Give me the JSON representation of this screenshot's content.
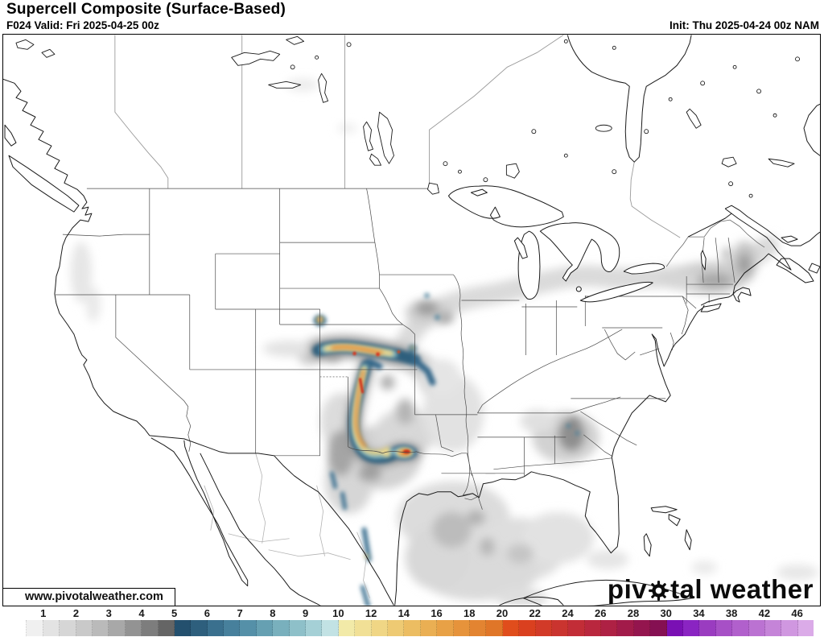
{
  "header": {
    "title": "Supercell Composite (Surface-Based)",
    "forecast_hour": "F024 Valid: Fri 2025-04-25 00z",
    "init": "Init: Thu 2025-04-24 00z NAM"
  },
  "map": {
    "watermark": "www.pivotalweather.com",
    "logo_prefix": "piv",
    "logo_suffix": "tal weather",
    "region": "North America (CONUS + Canada + Mexico)",
    "parameter": "Supercell Composite",
    "max_value_area": "Kansas / Oklahoma / Texas panhandle corridor"
  },
  "legend": {
    "labels": [
      "1",
      "2",
      "3",
      "4",
      "5",
      "6",
      "7",
      "8",
      "9",
      "10",
      "12",
      "14",
      "16",
      "18",
      "20",
      "22",
      "24",
      "26",
      "28",
      "30",
      "34",
      "38",
      "42",
      "46"
    ],
    "boxes_per_label": 2,
    "colors": [
      "#ffffff",
      "#f0f0f0",
      "#e3e3e3",
      "#d6d6d6",
      "#c9c9c9",
      "#bababa",
      "#a8a8a8",
      "#939393",
      "#7d7d7d",
      "#656565",
      "#24506e",
      "#2e5f7d",
      "#3a708e",
      "#47809c",
      "#5590a8",
      "#66a0b2",
      "#79b0bd",
      "#8ec0c9",
      "#a5d0d6",
      "#c2e2e4",
      "#f2eaa8",
      "#f1e096",
      "#f0d685",
      "#eeca73",
      "#ecbd62",
      "#eaaf53",
      "#e8a146",
      "#e6933b",
      "#e38431",
      "#e07628",
      "#e04d1c",
      "#da401f",
      "#d23a28",
      "#ca342f",
      "#c22d37",
      "#b9273e",
      "#ae2144",
      "#a21b4a",
      "#94154e",
      "#851052",
      "#7a10b4",
      "#8a24c2",
      "#9a3cc0",
      "#a750c6",
      "#b160cc",
      "#bb72d2",
      "#c584d8",
      "#d097e0",
      "#dbabe8"
    ]
  }
}
